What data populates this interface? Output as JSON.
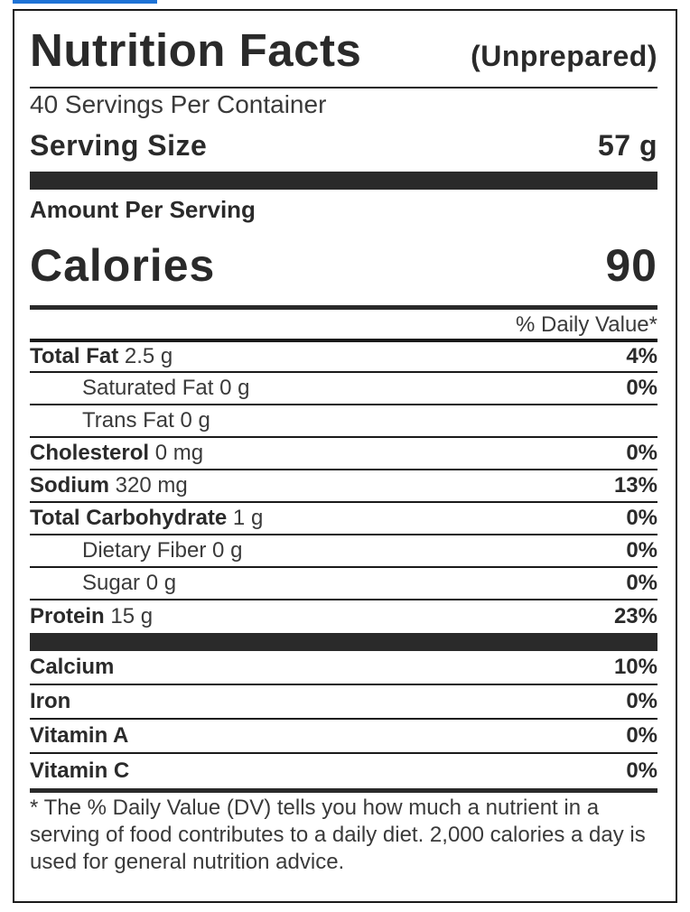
{
  "header": {
    "title": "Nutrition Facts",
    "subtitle": "(Unprepared)"
  },
  "servings_per_container": "40 Servings Per Container",
  "serving_size": {
    "label": "Serving Size",
    "value": "57 g"
  },
  "amount_per_serving": "Amount Per Serving",
  "calories": {
    "label": "Calories",
    "value": "90"
  },
  "daily_value_header": "% Daily Value*",
  "nutrients": [
    {
      "name": "Total Fat",
      "amount": "2.5 g",
      "dv": "4%"
    },
    {
      "name": "Saturated Fat",
      "amount": "0 g",
      "dv": "0%"
    },
    {
      "name": "Trans Fat",
      "amount": "0 g",
      "dv": ""
    },
    {
      "name": "Cholesterol",
      "amount": "0 mg",
      "dv": "0%"
    },
    {
      "name": "Sodium",
      "amount": "320 mg",
      "dv": "13%"
    },
    {
      "name": "Total Carbohydrate",
      "amount": "1 g",
      "dv": "0%"
    },
    {
      "name": "Dietary Fiber",
      "amount": "0 g",
      "dv": "0%"
    },
    {
      "name": "Sugar",
      "amount": "0 g",
      "dv": "0%"
    },
    {
      "name": "Protein",
      "amount": "15 g",
      "dv": "23%"
    }
  ],
  "vitamins": [
    {
      "name": "Calcium",
      "dv": "10%"
    },
    {
      "name": "Iron",
      "dv": "0%"
    },
    {
      "name": "Vitamin A",
      "dv": "0%"
    },
    {
      "name": "Vitamin C",
      "dv": "0%"
    }
  ],
  "footnote": "* The % Daily Value (DV) tells you how much a nutrient in a serving of food contributes to a daily diet. 2,000 calories a day is used for general nutrition advice.",
  "colors": {
    "top_strip": "#1e73d6",
    "ink": "#2a2a2a"
  }
}
